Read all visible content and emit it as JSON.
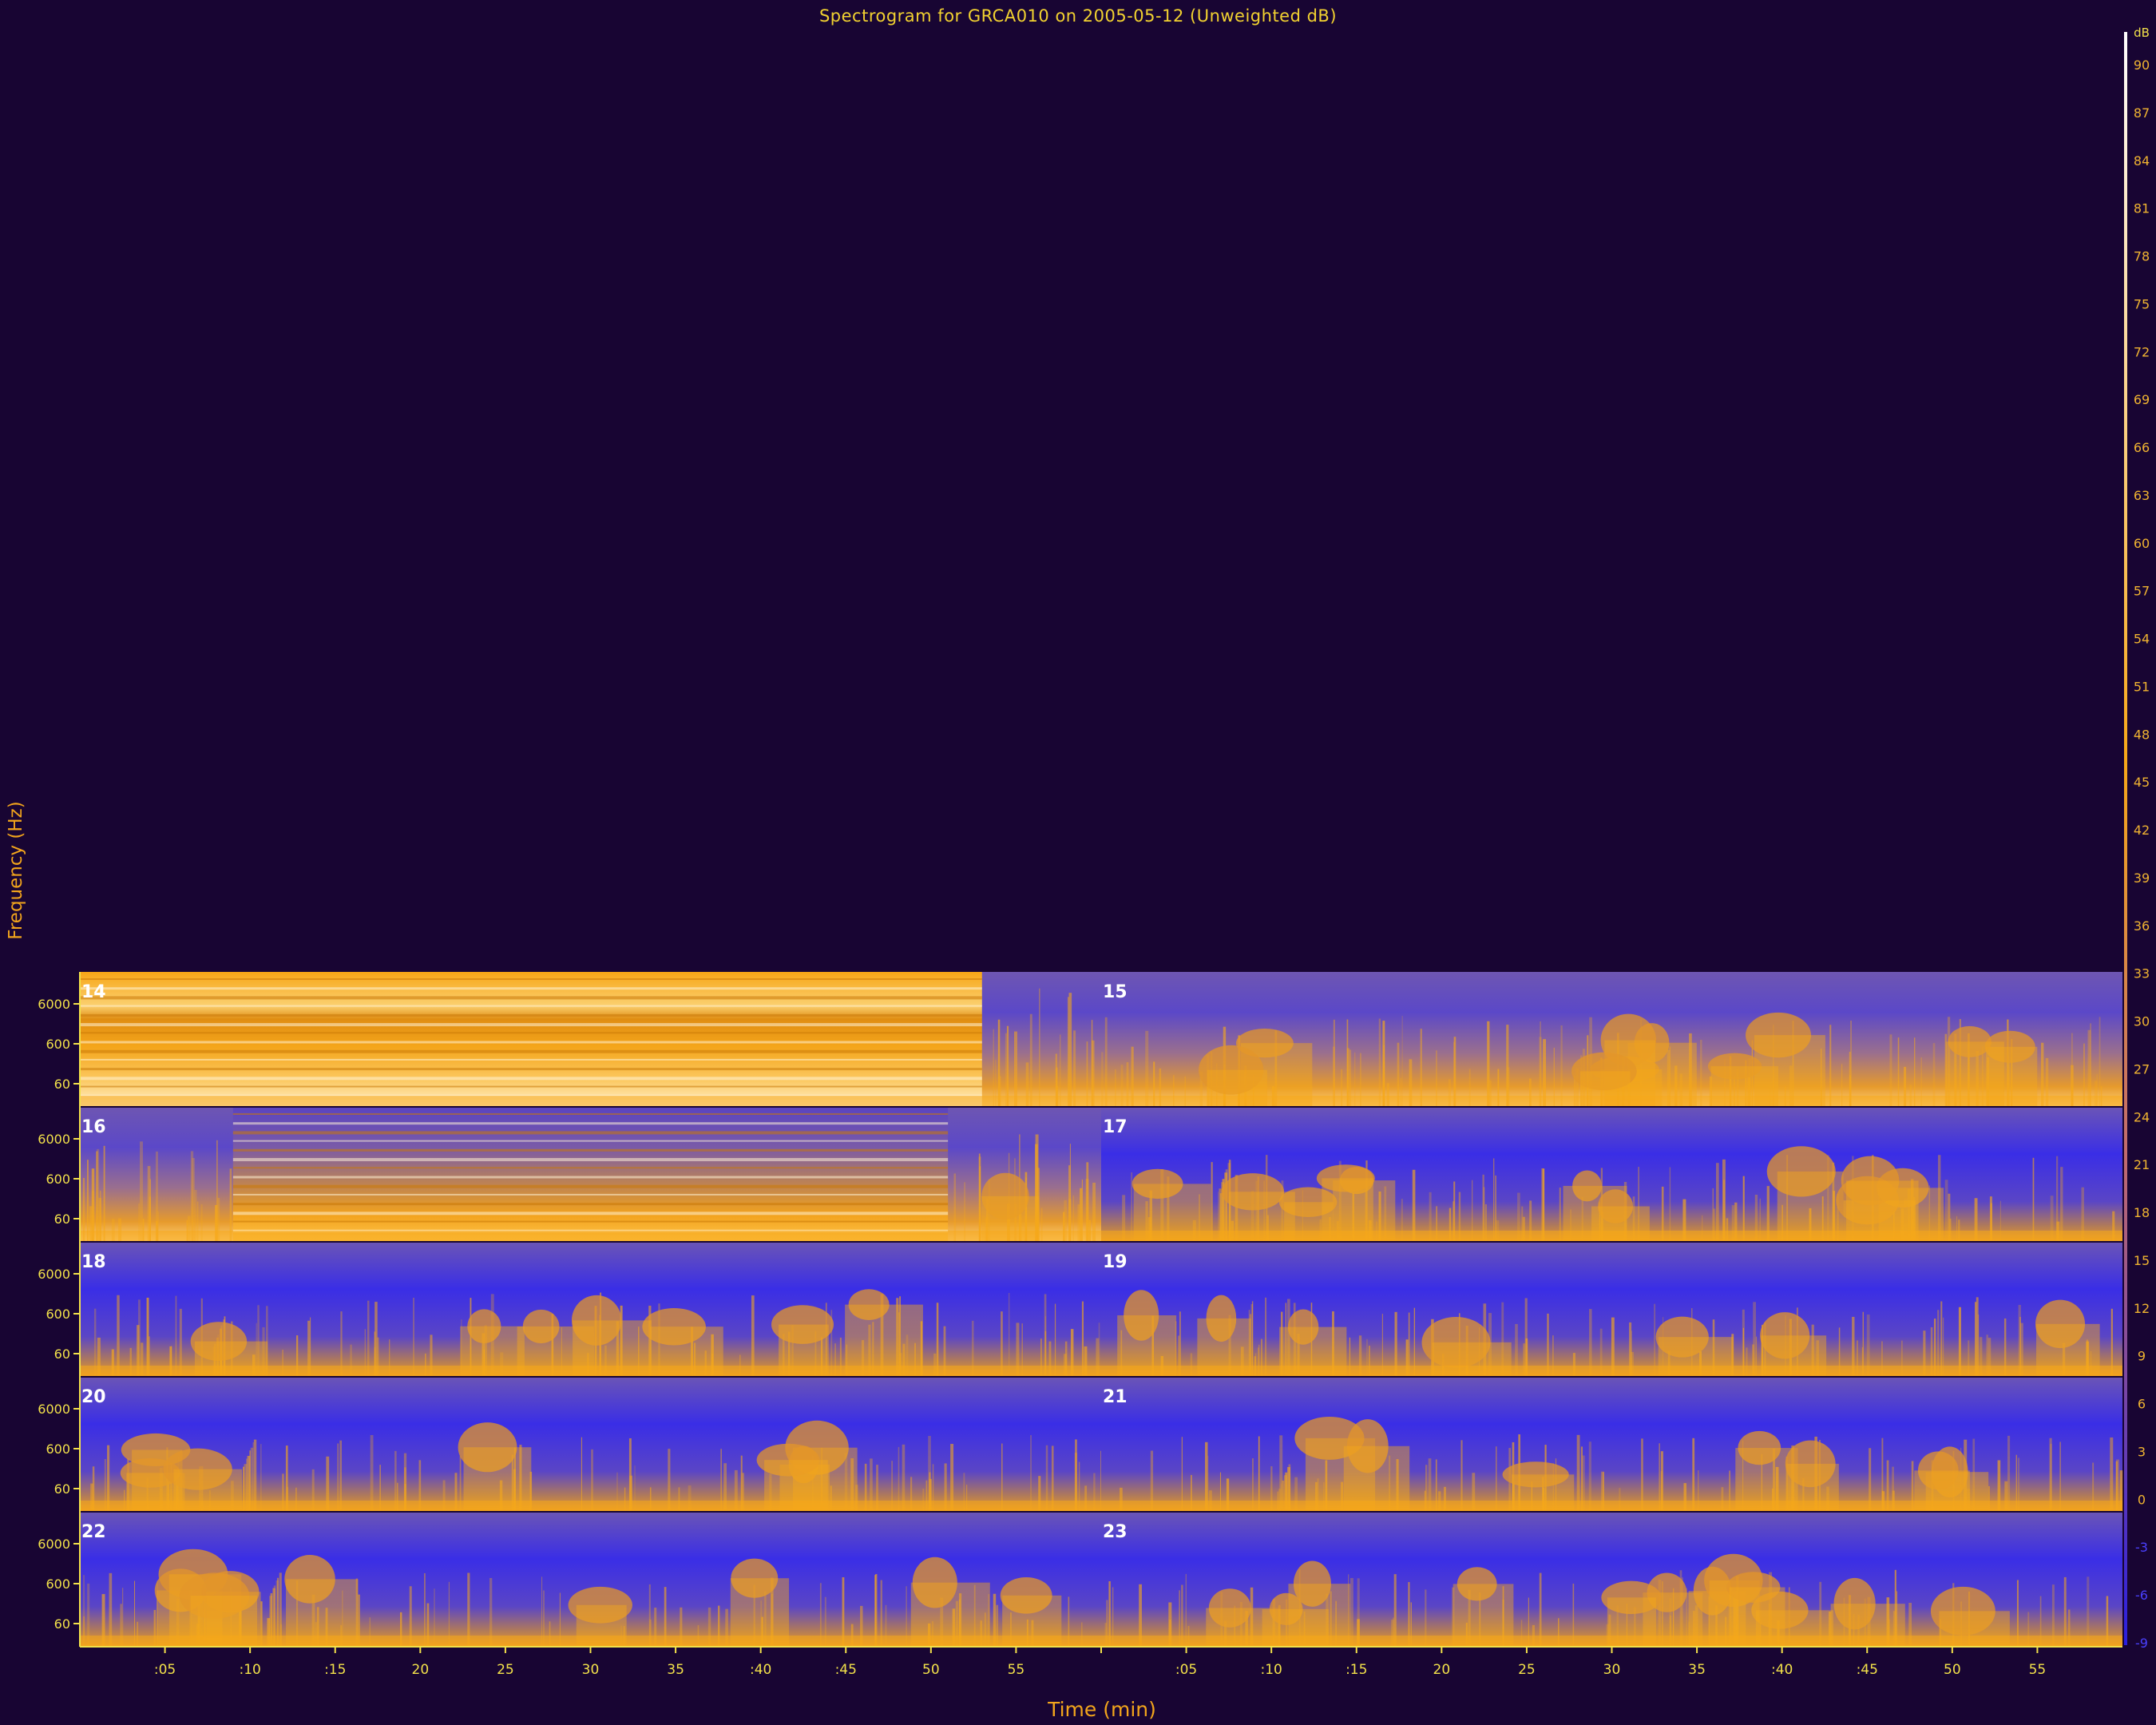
{
  "chart_data": {
    "type": "heatmap",
    "title": "Spectrogram for GRCA010 on 2005-05-12 (Unweighted dB)",
    "xlabel": "Time (min)",
    "ylabel": "Frequency (Hz)",
    "freq_tick_labels": [
      "6000",
      "600",
      "60"
    ],
    "x_tick_labels": [
      ":05",
      ":10",
      ":15",
      "20",
      "25",
      "30",
      "35",
      ":40",
      ":45",
      "50",
      "55",
      "",
      ":05",
      ":10",
      ":15",
      "20",
      "25",
      "30",
      "35",
      ":40",
      ":45",
      "50",
      "55"
    ],
    "colorbar": {
      "unit_label": "dB",
      "ticks": [
        90,
        87,
        84,
        81,
        78,
        75,
        72,
        69,
        66,
        63,
        60,
        57,
        54,
        51,
        48,
        45,
        42,
        39,
        36,
        33,
        30,
        27,
        24,
        21,
        18,
        15,
        12,
        9,
        6,
        3,
        0,
        -3,
        -6,
        -9
      ]
    },
    "hour_panels": [
      {
        "hour_label": "14",
        "note": "saturated",
        "start_min": 0,
        "end_min": 53,
        "level": 1.0
      },
      {
        "hour_label": "15",
        "note": "data",
        "start_min": 0,
        "end_min": 60,
        "level": 0.55
      },
      {
        "hour_label": "16",
        "note": "saturated",
        "start_min": 9,
        "end_min": 51,
        "level": 0.85
      },
      {
        "hour_label": "17",
        "note": "data",
        "start_min": 0,
        "end_min": 60,
        "level": 0.5
      },
      {
        "hour_label": "18",
        "note": "data",
        "start_min": 0,
        "end_min": 60,
        "level": 0.45
      },
      {
        "hour_label": "19",
        "note": "data",
        "start_min": 0,
        "end_min": 60,
        "level": 0.4
      },
      {
        "hour_label": "20",
        "note": "data",
        "start_min": 0,
        "end_min": 60,
        "level": 0.35
      },
      {
        "hour_label": "21",
        "note": "data",
        "start_min": 0,
        "end_min": 60,
        "level": 0.35
      },
      {
        "hour_label": "22",
        "note": "data",
        "start_min": 0,
        "end_min": 60,
        "level": 0.3
      },
      {
        "hour_label": "23",
        "note": "data",
        "start_min": 0,
        "end_min": 60,
        "level": 0.35
      }
    ],
    "colors": {
      "background": "#180533",
      "low": "#2a1fe0",
      "mid": "#6a52b8",
      "high": "#f5a81a",
      "peak": "#fff6d8",
      "title_text": "#f2d230",
      "tick_text": "#f2e14a"
    }
  }
}
